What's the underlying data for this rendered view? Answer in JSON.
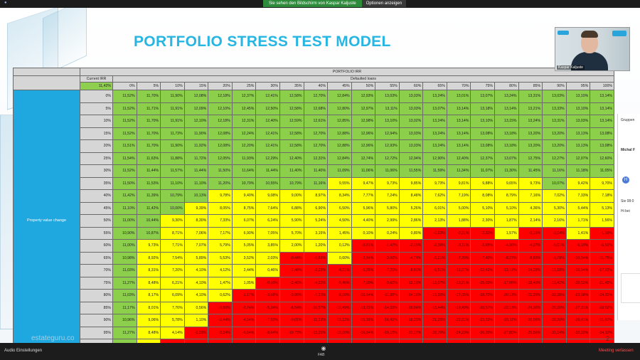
{
  "meeting": {
    "share_banner": "Sie sehen den Bildschirm von Kaspar Kaljuste",
    "options_label": "Optionen anzeigen",
    "audio_settings": "Audio Einstellungen",
    "reactions_label": "FAB",
    "leave_label": "Meeting verlassen",
    "participant_name": "Kaspar Kaljuste"
  },
  "slide": {
    "title": "PORTFOLIO STRESS TEST MODEL",
    "page_number": "2",
    "brand": "estateguru.co"
  },
  "table": {
    "top_header": "PORTFOLIO IRR",
    "defaulted_header": "Defaulted loans",
    "current_irr_label": "Current IRR",
    "current_irr_value": "11,42%",
    "side_label": "Property value change",
    "columns": [
      "0%",
      "5%",
      "10%",
      "15%",
      "20%",
      "25%",
      "30%",
      "35%",
      "40%",
      "45%",
      "50%",
      "55%",
      "60%",
      "65%",
      "70%",
      "75%",
      "80%",
      "85%",
      "90%",
      "95%",
      "100%"
    ],
    "rows": [
      {
        "label": "0%",
        "values": [
          "11,52%",
          "11,70%",
          "11,90%",
          "12,08%",
          "12,18%",
          "12,37%",
          "12,41%",
          "12,58%",
          "12,70%",
          "12,84%",
          "12,93%",
          "13,03%",
          "13,03%",
          "13,24%",
          "13,01%",
          "13,07%",
          "13,24%",
          "13,31%",
          "13,03%",
          "13,10%",
          "13,14%"
        ]
      },
      {
        "label": "5%",
        "values": [
          "11,52%",
          "11,71%",
          "11,91%",
          "12,09%",
          "12,10%",
          "12,45%",
          "12,50%",
          "12,58%",
          "12,68%",
          "12,80%",
          "12,97%",
          "13,11%",
          "13,03%",
          "13,07%",
          "13,14%",
          "13,18%",
          "13,14%",
          "13,21%",
          "13,33%",
          "13,10%",
          "13,14%"
        ]
      },
      {
        "label": "10%",
        "values": [
          "11,52%",
          "11,70%",
          "11,91%",
          "12,10%",
          "12,18%",
          "12,31%",
          "12,40%",
          "12,59%",
          "12,61%",
          "12,85%",
          "12,98%",
          "13,10%",
          "13,02%",
          "13,24%",
          "13,14%",
          "13,10%",
          "13,15%",
          "13,24%",
          "13,31%",
          "13,03%",
          "13,14%"
        ]
      },
      {
        "label": "15%",
        "values": [
          "11,52%",
          "11,70%",
          "11,73%",
          "11,90%",
          "12,08%",
          "12,24%",
          "12,41%",
          "12,58%",
          "12,70%",
          "12,88%",
          "12,96%",
          "12,94%",
          "13,03%",
          "13,24%",
          "13,14%",
          "13,08%",
          "13,18%",
          "13,20%",
          "13,20%",
          "13,13%",
          "13,08%"
        ]
      },
      {
        "label": "20%",
        "values": [
          "11,51%",
          "11,70%",
          "11,90%",
          "11,92%",
          "12,08%",
          "12,20%",
          "12,41%",
          "12,58%",
          "12,70%",
          "12,88%",
          "12,96%",
          "12,93%",
          "13,03%",
          "13,24%",
          "13,14%",
          "13,08%",
          "13,18%",
          "13,20%",
          "13,20%",
          "13,13%",
          "13,08%"
        ]
      },
      {
        "label": "25%",
        "values": [
          "11,54%",
          "11,63%",
          "11,88%",
          "11,72%",
          "12,05%",
          "11,93%",
          "12,29%",
          "12,40%",
          "12,31%",
          "12,84%",
          "12,74%",
          "12,72%",
          "12,94%",
          "12,90%",
          "12,40%",
          "12,37%",
          "13,07%",
          "12,75%",
          "12,27%",
          "12,07%",
          "12,60%"
        ]
      },
      {
        "label": "30%",
        "values": [
          "11,52%",
          "11,44%",
          "11,57%",
          "11,44%",
          "11,50%",
          "11,64%",
          "11,44%",
          "11,40%",
          "11,40%",
          "11,09%",
          "11,06%",
          "11,06%",
          "11,55%",
          "11,59%",
          "11,34%",
          "11,07%",
          "11,30%",
          "11,45%",
          "11,16%",
          "11,18%",
          "11,05%"
        ]
      },
      {
        "label": "35%",
        "values": [
          "11,50%",
          "11,53%",
          "11,10%",
          "11,10%",
          "11,20%",
          "10,79%",
          "10,55%",
          "10,79%",
          "11,16%",
          "9,55%",
          "9,47%",
          "9,73%",
          "9,85%",
          "9,73%",
          "9,81%",
          "9,88%",
          "9,65%",
          "9,73%",
          "10,07%",
          "9,42%",
          "9,70%"
        ]
      },
      {
        "label": "40%",
        "values": [
          "11,42%",
          "11,39%",
          "10,79%",
          "10,13%",
          "9,78%",
          "9,40%",
          "9,08%",
          "9,00%",
          "8,97%",
          "8,34%",
          "7,77%",
          "7,24%",
          "8,48%",
          "7,62%",
          "7,19%",
          "8,08%",
          "8,79%",
          "7,16%",
          "7,02%",
          "7,33%",
          "7,18%"
        ]
      },
      {
        "label": "45%",
        "values": [
          "11,10%",
          "11,42%",
          "10,00%",
          "9,39%",
          "8,05%",
          "8,75%",
          "7,64%",
          "6,88%",
          "6,90%",
          "6,50%",
          "5,96%",
          "5,80%",
          "5,26%",
          "6,01%",
          "5,00%",
          "5,10%",
          "5,10%",
          "4,36%",
          "5,30%",
          "5,44%",
          "5,13%"
        ]
      },
      {
        "label": "50%",
        "values": [
          "11,00%",
          "10,44%",
          "9,30%",
          "8,30%",
          "7,33%",
          "6,07%",
          "6,24%",
          "5,90%",
          "5,24%",
          "4,50%",
          "4,40%",
          "2,99%",
          "2,86%",
          "2,13%",
          "1,88%",
          "2,30%",
          "1,87%",
          "2,14%",
          "2,16%",
          "1,71%",
          "1,56%"
        ]
      },
      {
        "label": "55%",
        "values": [
          "10,90%",
          "10,87%",
          "8,71%",
          "7,06%",
          "7,17%",
          "6,90%",
          "7,05%",
          "5,70%",
          "3,15%",
          "1,45%",
          "0,10%",
          "0,24%",
          "0,80%",
          "-0,23%",
          "-0,31%",
          "-2,22%",
          "1,57%",
          "-3,15%",
          "-2,04%",
          "1,41%",
          "-1,10%"
        ]
      },
      {
        "label": "60%",
        "values": [
          "11,00%",
          "9,73%",
          "7,71%",
          "7,07%",
          "5,79%",
          "5,05%",
          "3,85%",
          "2,00%",
          "1,20%",
          "0,12%",
          "-0,81%",
          "-1,47%",
          "-2,15%",
          "-2,38%",
          "-3,11%",
          "-3,65%",
          "-4,30%",
          "-4,37%",
          "-5,01%",
          "-6,19%",
          "-6,51%"
        ]
      },
      {
        "label": "65%",
        "values": [
          "10,98%",
          "8,92%",
          "7,54%",
          "5,89%",
          "5,53%",
          "3,52%",
          "2,03%",
          "-0,44%",
          "-0,59%",
          "0,60%",
          "-2,84%",
          "-3,06%",
          "-4,74%",
          "-6,21%",
          "-7,20%",
          "-7,40%",
          "-8,27%",
          "-8,83%",
          "-9,78%",
          "-10,54%",
          "-11,75%"
        ]
      },
      {
        "label": "70%",
        "values": [
          "11,03%",
          "8,31%",
          "7,20%",
          "4,10%",
          "4,12%",
          "2,44%",
          "0,46%",
          "-1,48%",
          "-2,28%",
          "-4,01%",
          "-5,25%",
          "-7,20%",
          "-8,60%",
          "-9,51%",
          "-11,07%",
          "-12,41%",
          "-13,12%",
          "-14,28%",
          "-15,18%",
          "-16,54%",
          "-17,23%"
        ]
      },
      {
        "label": "75%",
        "values": [
          "11,27%",
          "8,48%",
          "6,21%",
          "4,10%",
          "1,47%",
          "1,05%",
          "-0,10%",
          "-2,40%",
          "-4,22%",
          "-5,46%",
          "-7,60%",
          "-9,60%",
          "-12,18%",
          "-13,07%",
          "-15,21%",
          "-15,00%",
          "-17,05%",
          "-18,40%",
          "-19,42%",
          "-20,52%",
          "-21,45%"
        ]
      },
      {
        "label": "80%",
        "values": [
          "11,03%",
          "8,17%",
          "6,09%",
          "4,10%",
          "0,62%",
          "-1,17%",
          "-3,66%",
          "-3,95%",
          "-7,10%",
          "-8,09%",
          "-10,64%",
          "-11,85%",
          "-14,16%",
          "-15,38%",
          "-17,05%",
          "-18,73%",
          "-20,13%",
          "-21,20%",
          "-22,28%",
          "-23,58%",
          "-24,31%"
        ]
      },
      {
        "label": "85%",
        "values": [
          "11,17%",
          "8,01%",
          "7,76%",
          "0,56%",
          "-0,50%",
          "-3,74%",
          "-5,34%",
          "-6,54%",
          "-10,57%",
          "-10,49%",
          "-13,23%",
          "-14,33%",
          "-16,04%",
          "-18,44%",
          "-19,49%",
          "-20,57%",
          "-22,13%",
          "-24,30%",
          "-26,20%",
          "-27,31%",
          "-28,02%"
        ]
      },
      {
        "label": "90%",
        "values": [
          "10,96%",
          "9,06%",
          "5,78%",
          "1,10%",
          "-2,44%",
          "-4,54%",
          "-7,33%",
          "-9,01%",
          "-11,23%",
          "-13,12%",
          "-15,15%",
          "-16,42%",
          "-18,22%",
          "-21,25%",
          "-22,81%",
          "-23,23%",
          "-25,11%",
          "-26,05%",
          "-28,20%",
          "-29,41%",
          "-31,07%"
        ]
      },
      {
        "label": "95%",
        "values": [
          "11,27%",
          "8,48%",
          "4,14%",
          "-1,23%",
          "-3,34%",
          "-5,64%",
          "-8,64%",
          "-10,73%",
          "-13,25%",
          "-15,00%",
          "-16,54%",
          "-19,16%",
          "-21,17%",
          "-22,70%",
          "-24,23%",
          "-26,20%",
          "-27,80%",
          "-29,56%",
          "-31,04%",
          "-32,22%",
          "-34,10%"
        ]
      },
      {
        "label": "100%",
        "values": [
          "10,67%",
          "8,17%",
          "-0,20%",
          "-3,07%",
          "-5,40%",
          "-8,15%",
          "-10,21%",
          "-12,73%",
          "-14,45%",
          "-17,40%",
          "-19,12%",
          "-20,41%",
          "-22,25%",
          "-24,45%",
          "-26,25%",
          "-29,50%",
          "-31,25%",
          "-33,30%",
          "-34,72%",
          "-36,41%",
          "-38,56%"
        ]
      }
    ],
    "colors": {
      "green": "#8ccf4a",
      "yellow": "#ffff00",
      "red": "#ff0000",
      "side": "#1fa7e0"
    }
  },
  "chat": {
    "header": "Gruppen",
    "sender": "Michal F",
    "avatar_letter": "H",
    "message_preview": "Hi bei",
    "time": "Sie 08:0"
  }
}
